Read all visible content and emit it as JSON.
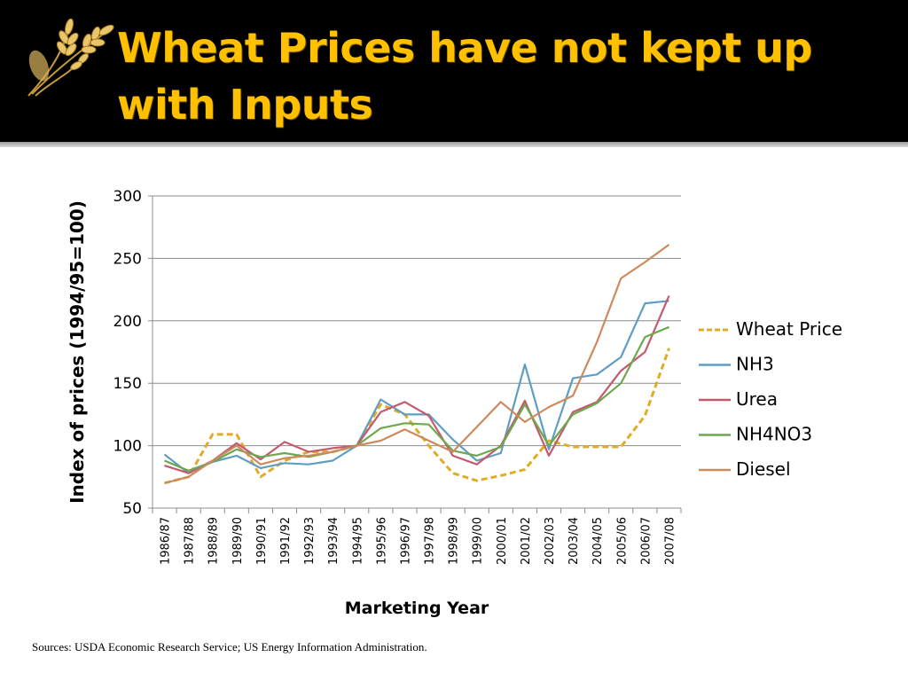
{
  "slide": {
    "title": "Wheat Prices have not kept up with Inputs",
    "title_color": "#ffc000",
    "header_bg": "#000000",
    "logo_icon": "wheat-icon",
    "sources": "Sources: USDA Economic Research Service; US Energy Information Administration."
  },
  "chart_data": {
    "type": "line",
    "title": "",
    "xlabel": "Marketing Year",
    "ylabel": "Index of prices (1994/95=100)",
    "ylim": [
      50,
      300
    ],
    "yticks": [
      50,
      100,
      150,
      200,
      250,
      300
    ],
    "grid": true,
    "legend_position": "right",
    "categories": [
      "1986/87",
      "1987/88",
      "1988/89",
      "1989/90",
      "1990/91",
      "1991/92",
      "1992/93",
      "1993/94",
      "1994/95",
      "1995/96",
      "1996/97",
      "1997/98",
      "1998/99",
      "1999/00",
      "2000/01",
      "2001/02",
      "2002/03",
      "2003/04",
      "2004/05",
      "2005/06",
      "2006/07",
      "2007/08"
    ],
    "series": [
      {
        "name": "Wheat Price",
        "color": "#e0ac28",
        "dashed": true,
        "values": [
          70,
          75,
          109,
          109,
          75,
          88,
          95,
          95,
          100,
          133,
          125,
          100,
          78,
          72,
          76,
          81,
          104,
          99,
          99,
          99,
          124,
          178
        ]
      },
      {
        "name": "NH3",
        "color": "#5f9ec2",
        "dashed": false,
        "values": [
          93,
          78,
          87,
          92,
          82,
          86,
          85,
          88,
          100,
          137,
          125,
          125,
          105,
          88,
          94,
          165,
          97,
          154,
          157,
          171,
          214,
          216
        ]
      },
      {
        "name": "Urea",
        "color": "#c45a6e",
        "dashed": false,
        "values": [
          84,
          78,
          88,
          102,
          89,
          103,
          95,
          98,
          100,
          127,
          135,
          124,
          92,
          85,
          100,
          136,
          92,
          127,
          135,
          160,
          175,
          220
        ]
      },
      {
        "name": "NH4NO3",
        "color": "#6ea84e",
        "dashed": false,
        "values": [
          88,
          80,
          87,
          97,
          91,
          94,
          91,
          95,
          100,
          114,
          118,
          117,
          96,
          92,
          99,
          133,
          100,
          125,
          134,
          150,
          187,
          195
        ]
      },
      {
        "name": "Diesel",
        "color": "#cc8a5e",
        "dashed": false,
        "values": [
          70,
          75,
          88,
          100,
          85,
          90,
          92,
          95,
          100,
          104,
          113,
          104,
          95,
          115,
          135,
          119,
          131,
          140,
          183,
          234,
          247,
          261
        ]
      }
    ]
  }
}
